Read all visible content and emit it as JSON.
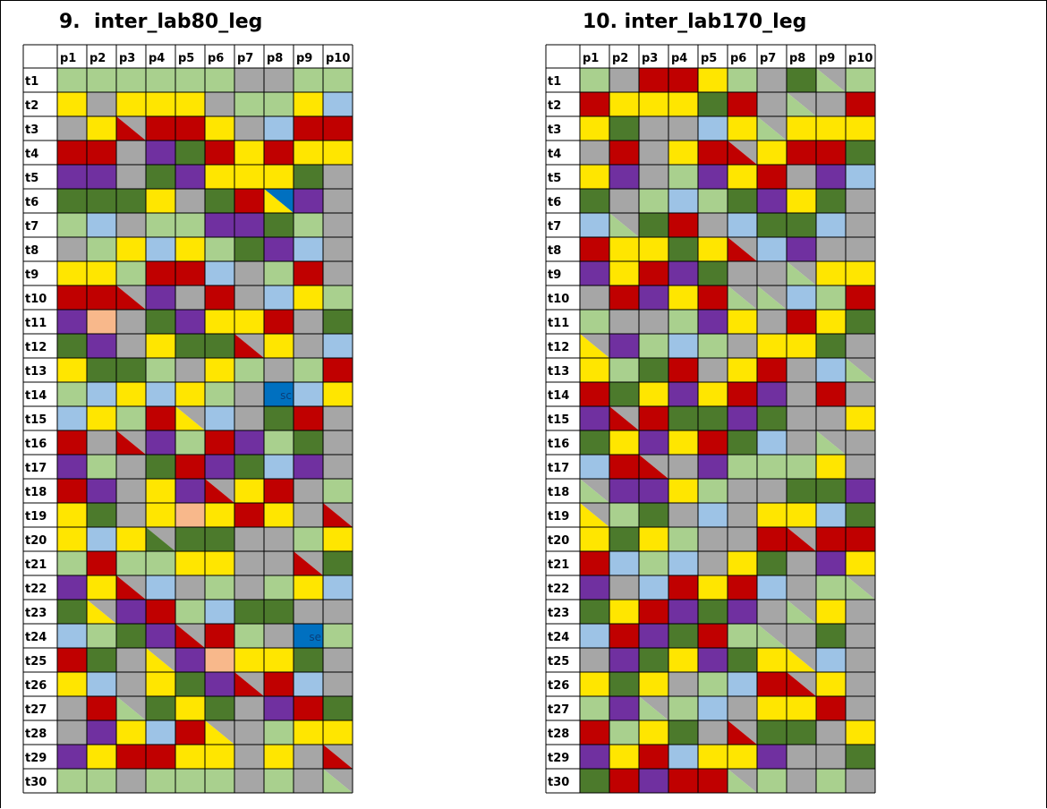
{
  "charts": [
    {
      "title": "9.  inter_lab80_leg",
      "columns": [
        "p1",
        "p2",
        "p3",
        "p4",
        "p5",
        "p6",
        "p7",
        "p8",
        "p9",
        "p10"
      ],
      "rows": [
        "t1",
        "t2",
        "t3",
        "t4",
        "t5",
        "t6",
        "t7",
        "t8",
        "t9",
        "t10",
        "t11",
        "t12",
        "t13",
        "t14",
        "t15",
        "t16",
        "t17",
        "t18",
        "t19",
        "t20",
        "t21",
        "t22",
        "t23",
        "t24",
        "t25",
        "t26",
        "t27",
        "t28",
        "t29",
        "t30"
      ],
      "cells": [
        [
          "LG",
          "LG",
          "LG",
          "LG",
          "LG",
          "LG",
          "G",
          "G",
          "LG",
          "LG"
        ],
        [
          "Y",
          "G",
          "Y",
          "Y",
          "Y",
          "G",
          "LG",
          "LG",
          "Y",
          "LB"
        ],
        [
          "G",
          "Y",
          "R/G",
          "R",
          "R",
          "Y",
          "G",
          "LB",
          "R",
          "R"
        ],
        [
          "R",
          "R",
          "G",
          "P",
          "DG",
          "R",
          "Y",
          "R",
          "Y",
          "Y"
        ],
        [
          "P",
          "P",
          "G",
          "DG",
          "P",
          "Y",
          "Y",
          "Y",
          "DG",
          "G"
        ],
        [
          "DG",
          "DG",
          "DG",
          "Y",
          "G",
          "DG",
          "R",
          "Y/B",
          "P",
          "G"
        ],
        [
          "LG",
          "LB",
          "G",
          "LG",
          "LG",
          "P",
          "P",
          "DG",
          "LG",
          "G"
        ],
        [
          "G",
          "LG",
          "Y",
          "LB",
          "Y",
          "LG",
          "DG",
          "P",
          "LB",
          "G"
        ],
        [
          "Y",
          "Y",
          "LG",
          "R",
          "R",
          "LB",
          "G",
          "LG",
          "R",
          "G"
        ],
        [
          "R",
          "R",
          "R/G",
          "P",
          "G",
          "R",
          "G",
          "LB",
          "Y",
          "LG"
        ],
        [
          "P",
          "O",
          "G",
          "DG",
          "P",
          "Y",
          "Y",
          "R",
          "G",
          "DG"
        ],
        [
          "DG",
          "P",
          "G",
          "Y",
          "DG",
          "DG",
          "R/G",
          "Y",
          "G",
          "LB"
        ],
        [
          "Y",
          "DG",
          "DG",
          "LG",
          "G",
          "Y",
          "LG",
          "G",
          "LG",
          "R"
        ],
        [
          "LG",
          "LB",
          "Y",
          "LB",
          "Y",
          "LG",
          "G",
          "B",
          "LB",
          "Y"
        ],
        [
          "LB",
          "Y",
          "LG",
          "R",
          "Y/G",
          "LB",
          "G",
          "DG",
          "R",
          "G"
        ],
        [
          "R",
          "G",
          "R/G",
          "P",
          "LG",
          "R",
          "P",
          "LG",
          "DG",
          "G"
        ],
        [
          "P",
          "LG",
          "G",
          "DG",
          "R",
          "P",
          "DG",
          "LB",
          "P",
          "G"
        ],
        [
          "R",
          "P",
          "G",
          "Y",
          "P",
          "R/G",
          "Y",
          "R",
          "G",
          "LG"
        ],
        [
          "Y",
          "DG",
          "G",
          "Y",
          "O",
          "Y",
          "R",
          "Y",
          "G",
          "R/G"
        ],
        [
          "Y",
          "LB",
          "Y",
          "DG/G",
          "DG",
          "DG",
          "G",
          "G",
          "LG",
          "Y"
        ],
        [
          "LG",
          "R",
          "LG",
          "LG",
          "Y",
          "Y",
          "G",
          "G",
          "R/G",
          "DG"
        ],
        [
          "P",
          "Y",
          "R/G",
          "LB",
          "G",
          "LG",
          "G",
          "LG",
          "Y",
          "LB"
        ],
        [
          "DG",
          "Y/G",
          "P",
          "R",
          "LG",
          "LB",
          "DG",
          "DG",
          "G",
          "G"
        ],
        [
          "LB",
          "LG",
          "DG",
          "P",
          "R/G",
          "R",
          "LG",
          "G",
          "B",
          "LG"
        ],
        [
          "R",
          "DG",
          "G",
          "Y/G",
          "P",
          "O",
          "Y",
          "Y",
          "DG",
          "G"
        ],
        [
          "Y",
          "LB",
          "G",
          "Y",
          "DG",
          "P",
          "R/G",
          "R",
          "LB",
          "G"
        ],
        [
          "G",
          "R",
          "LG/G",
          "DG",
          "Y",
          "DG",
          "G",
          "P",
          "R",
          "DG"
        ],
        [
          "G",
          "P",
          "Y",
          "LB",
          "R",
          "Y/G",
          "G",
          "LG",
          "Y",
          "Y"
        ],
        [
          "P",
          "Y",
          "R",
          "R",
          "Y",
          "Y",
          "G",
          "Y",
          "G",
          "R/G"
        ],
        [
          "LG",
          "LG",
          "G",
          "LG",
          "LG",
          "LG",
          "G",
          "LG",
          "G",
          "LG/G"
        ]
      ],
      "cell_texts": [
        {
          "row": "t14",
          "col": "p8",
          "text": "sc"
        },
        {
          "row": "t24",
          "col": "p9",
          "text": "se"
        }
      ]
    },
    {
      "title": "10. inter_lab170_leg",
      "columns": [
        "p1",
        "p2",
        "p3",
        "p4",
        "p5",
        "p6",
        "p7",
        "p8",
        "p9",
        "p10"
      ],
      "rows": [
        "t1",
        "t2",
        "t3",
        "t4",
        "t5",
        "t6",
        "t7",
        "t8",
        "t9",
        "t10",
        "t11",
        "t12",
        "t13",
        "t14",
        "t15",
        "t16",
        "t17",
        "t18",
        "t19",
        "t20",
        "t21",
        "t22",
        "t23",
        "t24",
        "t25",
        "t26",
        "t27",
        "t28",
        "t29",
        "t30"
      ],
      "cells": [
        [
          "LG",
          "G",
          "R",
          "R",
          "Y",
          "LG",
          "G",
          "DG",
          "LG/G",
          "LG"
        ],
        [
          "R",
          "Y",
          "Y",
          "Y",
          "DG",
          "R",
          "G",
          "LG/G",
          "G",
          "R"
        ],
        [
          "Y",
          "DG",
          "G",
          "G",
          "LB",
          "Y",
          "LG/G",
          "Y",
          "Y",
          "Y"
        ],
        [
          "G",
          "R",
          "G",
          "Y",
          "R",
          "R/G",
          "Y",
          "R",
          "R",
          "DG"
        ],
        [
          "Y",
          "P",
          "G",
          "LG",
          "P",
          "Y",
          "R",
          "G",
          "P",
          "LB"
        ],
        [
          "DG",
          "G",
          "LG",
          "LB",
          "LG",
          "DG",
          "P",
          "Y",
          "DG",
          "G"
        ],
        [
          "LB",
          "LG/G",
          "DG",
          "R",
          "G",
          "LB",
          "DG",
          "DG",
          "LB",
          "G"
        ],
        [
          "R",
          "Y",
          "Y",
          "DG",
          "Y",
          "R/G",
          "LB",
          "P",
          "G",
          "G"
        ],
        [
          "P",
          "Y",
          "R",
          "P",
          "DG",
          "G",
          "G",
          "LG/G",
          "Y",
          "Y"
        ],
        [
          "G",
          "R",
          "P",
          "Y",
          "R",
          "LG/G",
          "LG/G",
          "LB",
          "LG",
          "R"
        ],
        [
          "LG",
          "G",
          "G",
          "LG",
          "P",
          "Y",
          "G",
          "R",
          "Y",
          "DG"
        ],
        [
          "Y/G",
          "P",
          "LG",
          "LB",
          "LG",
          "G",
          "Y",
          "Y",
          "DG",
          "G"
        ],
        [
          "Y",
          "LG",
          "DG",
          "R",
          "G",
          "Y",
          "R",
          "G",
          "LB",
          "LG/G"
        ],
        [
          "R",
          "DG",
          "Y",
          "P",
          "Y",
          "R",
          "P",
          "G",
          "R",
          "G"
        ],
        [
          "P",
          "R/G",
          "R",
          "DG",
          "DG",
          "P",
          "DG",
          "G",
          "G",
          "Y"
        ],
        [
          "DG",
          "Y",
          "P",
          "Y",
          "R",
          "DG",
          "LB",
          "G",
          "LG/G",
          "G"
        ],
        [
          "LB",
          "R",
          "R/G",
          "G",
          "P",
          "LG",
          "LG",
          "LG",
          "Y",
          "G"
        ],
        [
          "LG/G",
          "P",
          "P",
          "Y",
          "LG",
          "G",
          "G",
          "DG",
          "DG",
          "P"
        ],
        [
          "Y/G",
          "LG",
          "DG",
          "G",
          "LB",
          "G",
          "Y",
          "Y",
          "LB",
          "DG"
        ],
        [
          "Y",
          "DG",
          "Y",
          "LG",
          "G",
          "G",
          "R",
          "R/G",
          "R",
          "R"
        ],
        [
          "R",
          "LB",
          "LG",
          "LB",
          "G",
          "Y",
          "DG",
          "G",
          "P",
          "Y"
        ],
        [
          "P",
          "G",
          "LB",
          "R",
          "Y",
          "R",
          "LB",
          "G",
          "LG",
          "LG/G"
        ],
        [
          "DG",
          "Y",
          "R",
          "P",
          "DG",
          "P",
          "G",
          "LG/G",
          "Y",
          "G"
        ],
        [
          "LB",
          "R",
          "P",
          "DG",
          "R",
          "LG",
          "LG/G",
          "G",
          "DG",
          "G"
        ],
        [
          "G",
          "P",
          "DG",
          "Y",
          "P",
          "DG",
          "Y",
          "Y/G",
          "LB",
          "G"
        ],
        [
          "Y",
          "DG",
          "Y",
          "G",
          "LG",
          "LB",
          "R",
          "R/G",
          "Y",
          "G"
        ],
        [
          "LG",
          "P",
          "LG/G",
          "LG",
          "LB",
          "G",
          "Y",
          "Y",
          "R",
          "G"
        ],
        [
          "R",
          "LG",
          "Y",
          "DG",
          "G",
          "R/G",
          "DG",
          "DG",
          "G",
          "Y"
        ],
        [
          "P",
          "Y",
          "R",
          "LB",
          "Y",
          "Y",
          "P",
          "G",
          "G",
          "DG"
        ],
        [
          "DG",
          "R",
          "P",
          "R",
          "R",
          "LG/G",
          "LG",
          "G",
          "LG",
          "G"
        ]
      ],
      "cell_texts": []
    }
  ],
  "palette": {
    "LG": "#a9d08e",
    "G": "#a6a6a6",
    "Y": "#ffe600",
    "R": "#c00000",
    "P": "#7030a0",
    "DG": "#4c7a2c",
    "LB": "#9dc3e6",
    "O": "#f8b88b",
    "B": "#0070c0"
  }
}
